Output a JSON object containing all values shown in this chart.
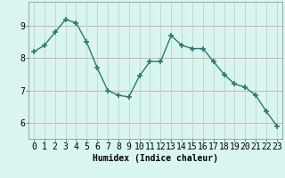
{
  "title": "",
  "xlabel": "Humidex (Indice chaleur)",
  "ylabel": "",
  "x": [
    0,
    1,
    2,
    3,
    4,
    5,
    6,
    7,
    8,
    9,
    10,
    11,
    12,
    13,
    14,
    15,
    16,
    17,
    18,
    19,
    20,
    21,
    22,
    23
  ],
  "y": [
    8.2,
    8.4,
    8.8,
    9.2,
    9.1,
    8.5,
    7.7,
    7.0,
    6.85,
    6.8,
    7.45,
    7.9,
    7.9,
    8.7,
    8.4,
    8.3,
    8.3,
    7.9,
    7.5,
    7.2,
    7.1,
    6.85,
    6.35,
    5.9
  ],
  "line_color": "#2a7a6a",
  "marker": "+",
  "bg_color": "#d8f5f0",
  "grid_color_h": "#d0b0b0",
  "grid_color_v": "#c0d8d4",
  "ylim": [
    5.5,
    9.75
  ],
  "yticks": [
    6,
    7,
    8,
    9
  ],
  "xticks": [
    0,
    1,
    2,
    3,
    4,
    5,
    6,
    7,
    8,
    9,
    10,
    11,
    12,
    13,
    14,
    15,
    16,
    17,
    18,
    19,
    20,
    21,
    22,
    23
  ],
  "xlabel_fontsize": 7,
  "tick_fontsize": 7
}
